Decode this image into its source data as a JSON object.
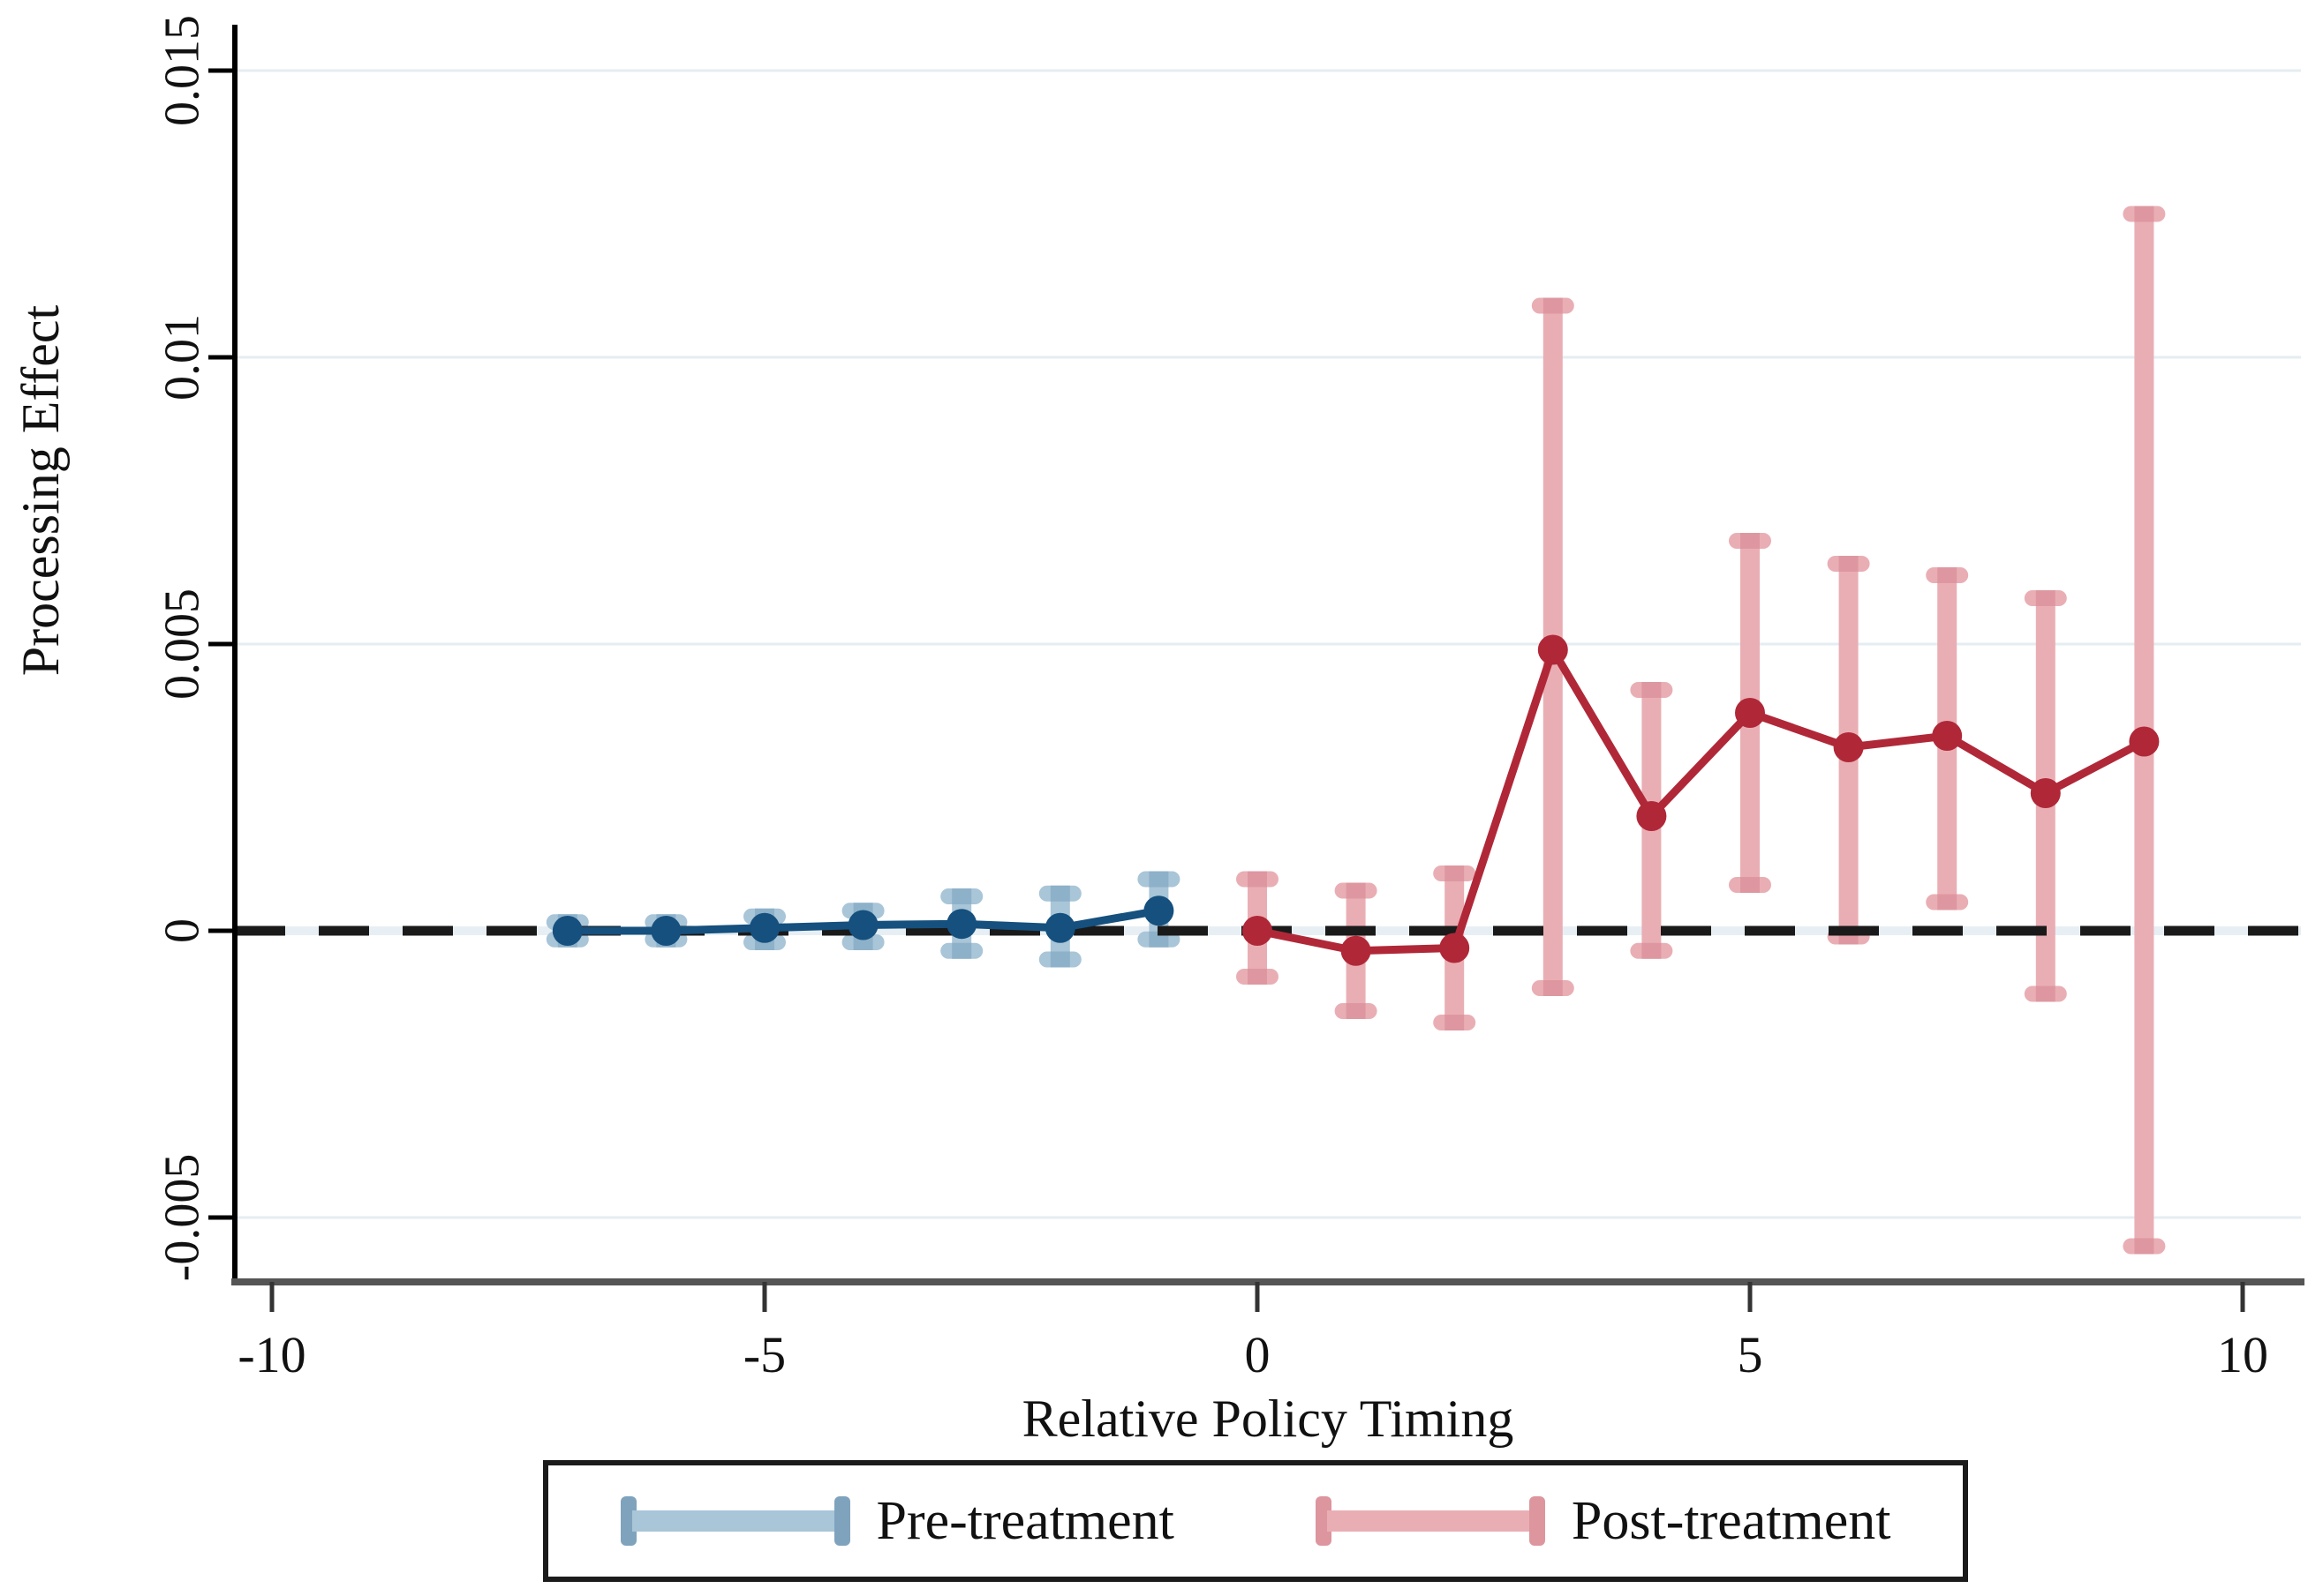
{
  "chart_data": {
    "type": "line",
    "title": "",
    "xlabel": "Relative Policy Timing",
    "ylabel": "Processing Effect",
    "x_ticks": {
      "values": [
        -10,
        -5,
        0,
        5,
        10
      ],
      "labels": [
        "-10",
        "-5",
        "0",
        "5",
        "10"
      ]
    },
    "y_ticks": {
      "values": [
        0.015,
        0.01,
        0.005,
        0,
        -0.005
      ],
      "labels": [
        "0.015",
        "0.01",
        "0.005",
        "0",
        "-0.005"
      ]
    },
    "xlim": [
      -10.4,
      10.6
    ],
    "ylim": [
      -0.0064,
      0.0156
    ],
    "grid": "horizontal",
    "grid_color": "#e4edf2",
    "zero_line": {
      "y": 0,
      "style": "dashed",
      "color": "#1a1a1a"
    },
    "axis_colors": {
      "y_axis": "#000000",
      "x_axis": "#555555",
      "text": "#111111"
    },
    "legend_position": "bottom-center",
    "series": [
      {
        "name": "Pre-treatment",
        "color": "#15507e",
        "ci_color": "#a9c5d8",
        "ci_cap_color": "#8db1c9",
        "points": [
          {
            "x": -7,
            "y": 0.0,
            "lo": -0.00015,
            "hi": 0.00015
          },
          {
            "x": -6,
            "y": 0.0,
            "lo": -0.00015,
            "hi": 0.00015
          },
          {
            "x": -5,
            "y": 5e-05,
            "lo": -0.0002,
            "hi": 0.00025
          },
          {
            "x": -4,
            "y": 0.0001,
            "lo": -0.0002,
            "hi": 0.00035
          },
          {
            "x": -3,
            "y": 0.00012,
            "lo": -0.00035,
            "hi": 0.0006
          },
          {
            "x": -2,
            "y": 5e-05,
            "lo": -0.0005,
            "hi": 0.00065
          },
          {
            "x": -1,
            "y": 0.00035,
            "lo": -0.00015,
            "hi": 0.0009
          }
        ]
      },
      {
        "name": "Post-treatment",
        "color": "#b02838",
        "ci_color": "#e9aeb4",
        "ci_cap_color": "#de97a0",
        "points": [
          {
            "x": 0,
            "y": 0.0,
            "lo": -0.0008,
            "hi": 0.0009
          },
          {
            "x": 1,
            "y": -0.00035,
            "lo": -0.0014,
            "hi": 0.0007
          },
          {
            "x": 2,
            "y": -0.0003,
            "lo": -0.0016,
            "hi": 0.001
          },
          {
            "x": 3,
            "y": 0.0049,
            "lo": -0.001,
            "hi": 0.0109
          },
          {
            "x": 4,
            "y": 0.002,
            "lo": -0.00035,
            "hi": 0.0042
          },
          {
            "x": 5,
            "y": 0.0038,
            "lo": 0.0008,
            "hi": 0.0068
          },
          {
            "x": 6,
            "y": 0.0032,
            "lo": -0.0001,
            "hi": 0.0064
          },
          {
            "x": 7,
            "y": 0.0034,
            "lo": 0.0005,
            "hi": 0.0062
          },
          {
            "x": 8,
            "y": 0.0024,
            "lo": -0.0011,
            "hi": 0.0058
          },
          {
            "x": 9,
            "y": 0.0033,
            "lo": -0.0055,
            "hi": 0.0125
          }
        ]
      }
    ]
  },
  "legend": {
    "items": [
      {
        "label": "Pre-treatment"
      },
      {
        "label": "Post-treatment"
      }
    ]
  }
}
